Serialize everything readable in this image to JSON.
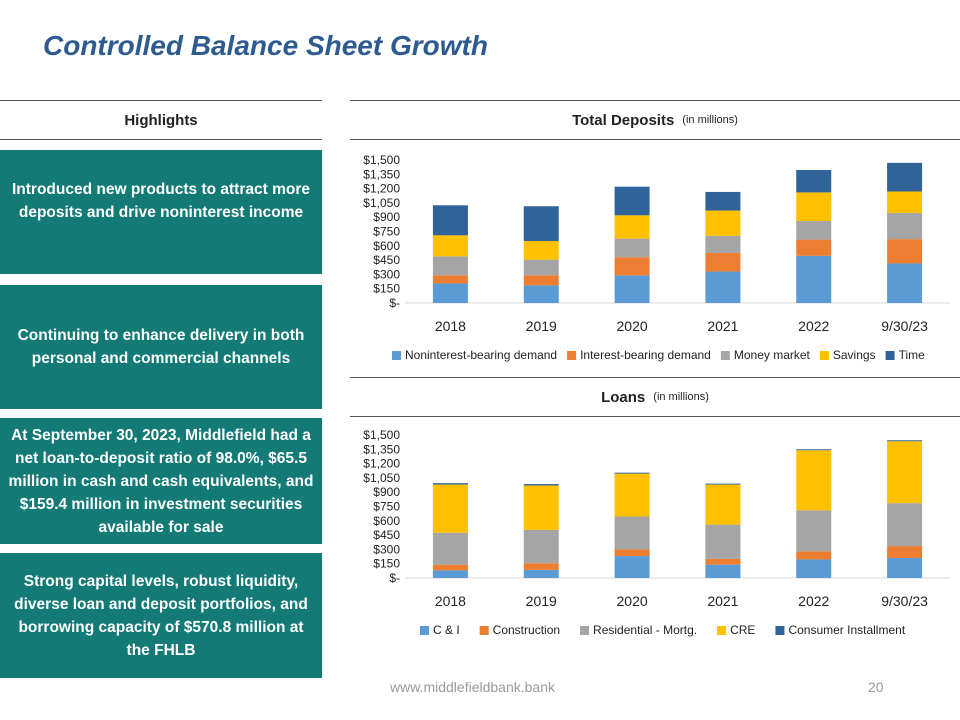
{
  "page": {
    "title": "Controlled Balance Sheet Growth",
    "highlights_header": "Highlights",
    "highlights": [
      "Introduced new products to attract more deposits and drive noninterest income",
      "Continuing to enhance delivery in both personal and commercial channels",
      "At September 30, 2023, Middlefield had a net loan-to-deposit ratio of 98.0%, $65.5 million in cash and cash equivalents, and $159.4 million in investment securities available for sale",
      "Strong capital levels, robust liquidity, diverse loan and deposit portfolios, and borrowing capacity of $570.8 million at the FHLB"
    ],
    "footer_url": "www.middlefieldbank.bank",
    "page_number": "20"
  },
  "chart_data": [
    {
      "id": "deposits",
      "type": "bar",
      "stacked": true,
      "title": "Total Deposits",
      "subtitle": "(in millions)",
      "categories": [
        "2018",
        "2019",
        "2020",
        "2021",
        "2022",
        "9/30/23"
      ],
      "ylim": [
        0,
        1500
      ],
      "yticks": [
        0,
        150,
        300,
        450,
        600,
        750,
        900,
        1050,
        1200,
        1350,
        1500
      ],
      "ytick_labels": [
        "$-",
        "$150",
        "$300",
        "$450",
        "$600",
        "$750",
        "$900",
        "$1,050",
        "$1,200",
        "$1,350",
        "$1,500"
      ],
      "legend_position": "bottom",
      "series": [
        {
          "name": "Noninterest-bearing demand",
          "color": "#5b9bd5",
          "values": [
            205,
            185,
            290,
            330,
            495,
            415
          ]
        },
        {
          "name": "Interest-bearing demand",
          "color": "#ed7d31",
          "values": [
            85,
            105,
            190,
            195,
            170,
            255
          ]
        },
        {
          "name": "Money market",
          "color": "#a5a5a5",
          "values": [
            200,
            165,
            195,
            180,
            195,
            275
          ]
        },
        {
          "name": "Savings",
          "color": "#ffc000",
          "values": [
            220,
            195,
            245,
            265,
            300,
            225
          ]
        },
        {
          "name": "Time",
          "color": "#2f639a",
          "values": [
            315,
            365,
            300,
            195,
            235,
            300
          ]
        }
      ]
    },
    {
      "id": "loans",
      "type": "bar",
      "stacked": true,
      "title": "Loans",
      "subtitle": "(in millions)",
      "categories": [
        "2018",
        "2019",
        "2020",
        "2021",
        "2022",
        "9/30/23"
      ],
      "ylim": [
        0,
        1500
      ],
      "yticks": [
        0,
        150,
        300,
        450,
        600,
        750,
        900,
        1050,
        1200,
        1350,
        1500
      ],
      "ytick_labels": [
        "$-",
        "$150",
        "$300",
        "$450",
        "$600",
        "$750",
        "$900",
        "$1,050",
        "$1,200",
        "$1,350",
        "$1,500"
      ],
      "legend_position": "bottom",
      "series": [
        {
          "name": "C & I",
          "color": "#5b9bd5",
          "values": [
            80,
            85,
            230,
            140,
            195,
            210
          ]
        },
        {
          "name": "Construction",
          "color": "#ed7d31",
          "values": [
            60,
            70,
            70,
            60,
            85,
            125
          ]
        },
        {
          "name": "Residential - Mortg.",
          "color": "#a5a5a5",
          "values": [
            335,
            350,
            345,
            360,
            430,
            450
          ]
        },
        {
          "name": "CRE",
          "color": "#ffc000",
          "values": [
            505,
            465,
            450,
            420,
            630,
            650
          ]
        },
        {
          "name": "Consumer Installment",
          "color": "#2f639a",
          "values": [
            15,
            15,
            10,
            10,
            10,
            10
          ]
        }
      ]
    }
  ]
}
